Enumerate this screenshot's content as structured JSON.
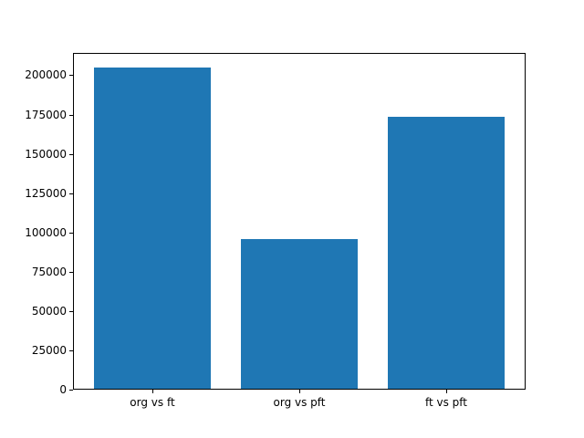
{
  "chart_data": {
    "type": "bar",
    "categories": [
      "org vs ft",
      "org vs pft",
      "ft vs pft"
    ],
    "values": [
      204500,
      95000,
      172800
    ],
    "title": "",
    "xlabel": "",
    "ylabel": "",
    "ylim": [
      0,
      214200
    ],
    "xlim": [
      -0.54,
      2.54
    ],
    "bar_width": 0.8,
    "yticks": [
      0,
      25000,
      50000,
      75000,
      100000,
      125000,
      150000,
      175000,
      200000
    ],
    "legend": null,
    "grid": false,
    "bar_color": "#1f77b4",
    "axis_color": "#000000",
    "background_color": "#ffffff"
  }
}
